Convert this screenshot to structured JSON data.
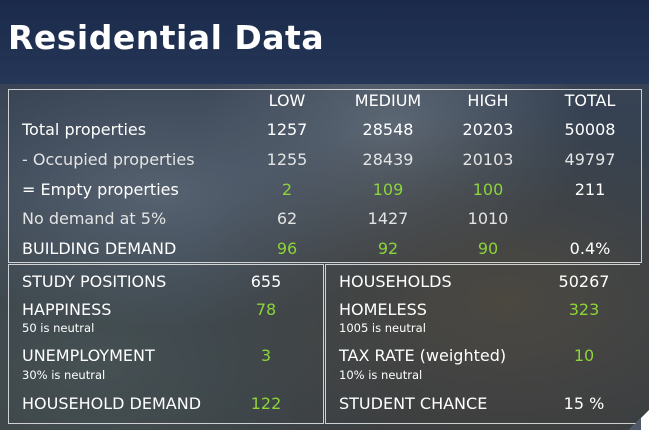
{
  "title": "Residential Data",
  "columns": [
    "LOW",
    "MEDIUM",
    "HIGH",
    "TOTAL"
  ],
  "rows": [
    {
      "label": "Total properties",
      "values": [
        "1257",
        "28548",
        "20203",
        "50008"
      ]
    },
    {
      "label": "- Occupied properties",
      "values": [
        "1255",
        "28439",
        "20103",
        "49797"
      ]
    },
    {
      "label": "= Empty properties",
      "values": [
        "2",
        "109",
        "100",
        "211"
      ]
    },
    {
      "label": "No demand at 5%",
      "values": [
        "62",
        "1427",
        "1010",
        ""
      ]
    },
    {
      "label": "BUILDING DEMAND",
      "values": [
        "96",
        "92",
        "90",
        "0.4%"
      ]
    }
  ],
  "left_stats": [
    {
      "label": "STUDY POSITIONS",
      "value": "655",
      "note": ""
    },
    {
      "label": "HAPPINESS",
      "value": "78",
      "note": "50 is neutral"
    },
    {
      "label": "UNEMPLOYMENT",
      "value": "3",
      "note": "30% is neutral"
    },
    {
      "label": "HOUSEHOLD DEMAND",
      "value": "122",
      "note": ""
    }
  ],
  "right_stats": [
    {
      "label": "HOUSEHOLDS",
      "value": "50267",
      "note": ""
    },
    {
      "label": "HOMELESS",
      "value": "323",
      "note": "1005 is neutral"
    },
    {
      "label": "TAX RATE (weighted)",
      "value": "10",
      "note": "10% is neutral"
    },
    {
      "label": "STUDENT CHANCE",
      "value": "15 %",
      "note": ""
    }
  ],
  "colors": {
    "accent_green": "#8cd43a",
    "header_bg": "#1b2a4a",
    "text": "#ffffff"
  }
}
